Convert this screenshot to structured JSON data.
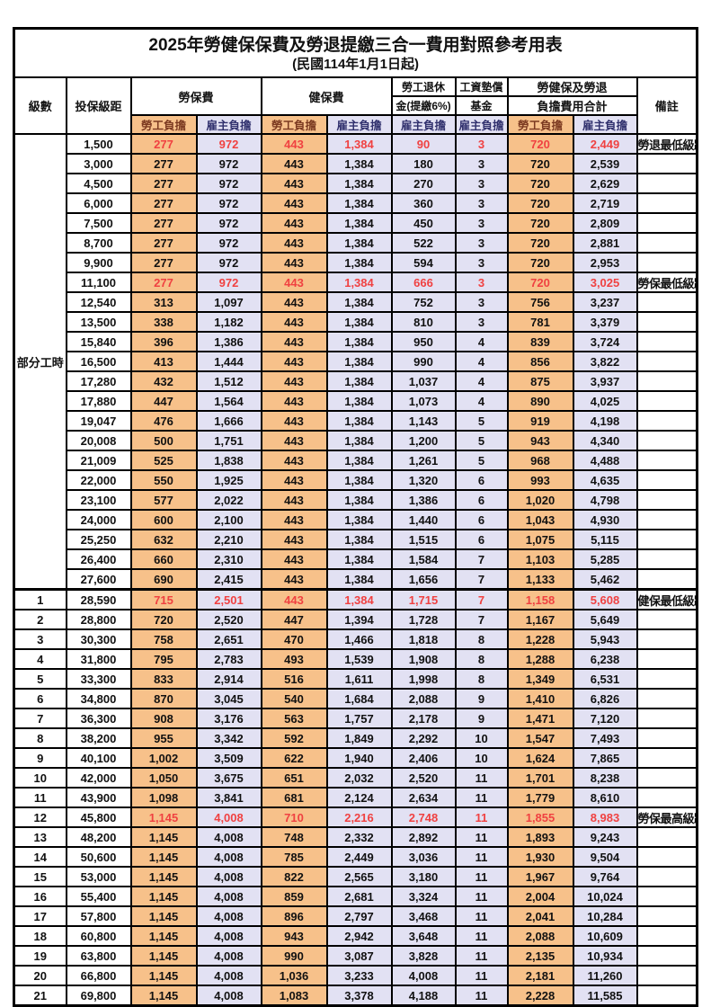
{
  "page": {
    "title": "2025年勞健保保費及勞退提繳三合一費用對照參考用表",
    "subtitle": "(民國114年1月1日起)"
  },
  "colors": {
    "employee_col_bg": "#F7C18A",
    "employer_col_bg": "#E2E1F3",
    "highlight_text": "#F04141",
    "note_text": "#FF4D4D",
    "border": "#000000"
  },
  "table": {
    "headers": {
      "level": "級數",
      "bracket": "投保級距",
      "labor_ins": "勞保費",
      "health_ins": "健保費",
      "pension_line1": "勞工退休",
      "pension_line2": "金(提繳6%)",
      "wage_fund_line1": "工資墊償",
      "wage_fund_line2": "基金",
      "total_line1": "勞健保及勞退",
      "total_line2": "負擔費用合計",
      "note": "備註",
      "employee": "勞工負擔",
      "employer": "雇主負擔"
    },
    "part_time_label": "部分工時",
    "part_time_span": 23,
    "row_columns": [
      "level",
      "bracket",
      "labor_emp",
      "labor_er",
      "health_emp",
      "health_er",
      "pension_er",
      "fund_er",
      "total_emp",
      "total_er",
      "note",
      "highlight"
    ],
    "rows": [
      [
        "",
        "1,500",
        "277",
        "972",
        "443",
        "1,384",
        "90",
        "3",
        "720",
        "2,449",
        "勞退最低級距",
        1
      ],
      [
        "",
        "3,000",
        "277",
        "972",
        "443",
        "1,384",
        "180",
        "3",
        "720",
        "2,539",
        "",
        0
      ],
      [
        "",
        "4,500",
        "277",
        "972",
        "443",
        "1,384",
        "270",
        "3",
        "720",
        "2,629",
        "",
        0
      ],
      [
        "",
        "6,000",
        "277",
        "972",
        "443",
        "1,384",
        "360",
        "3",
        "720",
        "2,719",
        "",
        0
      ],
      [
        "",
        "7,500",
        "277",
        "972",
        "443",
        "1,384",
        "450",
        "3",
        "720",
        "2,809",
        "",
        0
      ],
      [
        "",
        "8,700",
        "277",
        "972",
        "443",
        "1,384",
        "522",
        "3",
        "720",
        "2,881",
        "",
        0
      ],
      [
        "",
        "9,900",
        "277",
        "972",
        "443",
        "1,384",
        "594",
        "3",
        "720",
        "2,953",
        "",
        0
      ],
      [
        "",
        "11,100",
        "277",
        "972",
        "443",
        "1,384",
        "666",
        "3",
        "720",
        "3,025",
        "勞保最低級距",
        1
      ],
      [
        "",
        "12,540",
        "313",
        "1,097",
        "443",
        "1,384",
        "752",
        "3",
        "756",
        "3,237",
        "",
        0
      ],
      [
        "",
        "13,500",
        "338",
        "1,182",
        "443",
        "1,384",
        "810",
        "3",
        "781",
        "3,379",
        "",
        0
      ],
      [
        "",
        "15,840",
        "396",
        "1,386",
        "443",
        "1,384",
        "950",
        "4",
        "839",
        "3,724",
        "",
        0
      ],
      [
        "",
        "16,500",
        "413",
        "1,444",
        "443",
        "1,384",
        "990",
        "4",
        "856",
        "3,822",
        "",
        0
      ],
      [
        "",
        "17,280",
        "432",
        "1,512",
        "443",
        "1,384",
        "1,037",
        "4",
        "875",
        "3,937",
        "",
        0
      ],
      [
        "",
        "17,880",
        "447",
        "1,564",
        "443",
        "1,384",
        "1,073",
        "4",
        "890",
        "4,025",
        "",
        0
      ],
      [
        "",
        "19,047",
        "476",
        "1,666",
        "443",
        "1,384",
        "1,143",
        "5",
        "919",
        "4,198",
        "",
        0
      ],
      [
        "",
        "20,008",
        "500",
        "1,751",
        "443",
        "1,384",
        "1,200",
        "5",
        "943",
        "4,340",
        "",
        0
      ],
      [
        "",
        "21,009",
        "525",
        "1,838",
        "443",
        "1,384",
        "1,261",
        "5",
        "968",
        "4,488",
        "",
        0
      ],
      [
        "",
        "22,000",
        "550",
        "1,925",
        "443",
        "1,384",
        "1,320",
        "6",
        "993",
        "4,635",
        "",
        0
      ],
      [
        "",
        "23,100",
        "577",
        "2,022",
        "443",
        "1,384",
        "1,386",
        "6",
        "1,020",
        "4,798",
        "",
        0
      ],
      [
        "",
        "24,000",
        "600",
        "2,100",
        "443",
        "1,384",
        "1,440",
        "6",
        "1,043",
        "4,930",
        "",
        0
      ],
      [
        "",
        "25,250",
        "632",
        "2,210",
        "443",
        "1,384",
        "1,515",
        "6",
        "1,075",
        "5,115",
        "",
        0
      ],
      [
        "",
        "26,400",
        "660",
        "2,310",
        "443",
        "1,384",
        "1,584",
        "7",
        "1,103",
        "5,285",
        "",
        0
      ],
      [
        "",
        "27,600",
        "690",
        "2,415",
        "443",
        "1,384",
        "1,656",
        "7",
        "1,133",
        "5,462",
        "",
        0
      ],
      [
        "1",
        "28,590",
        "715",
        "2,501",
        "443",
        "1,384",
        "1,715",
        "7",
        "1,158",
        "5,608",
        "健保最低級距",
        1
      ],
      [
        "2",
        "28,800",
        "720",
        "2,520",
        "447",
        "1,394",
        "1,728",
        "7",
        "1,167",
        "5,649",
        "",
        0
      ],
      [
        "3",
        "30,300",
        "758",
        "2,651",
        "470",
        "1,466",
        "1,818",
        "8",
        "1,228",
        "5,943",
        "",
        0
      ],
      [
        "4",
        "31,800",
        "795",
        "2,783",
        "493",
        "1,539",
        "1,908",
        "8",
        "1,288",
        "6,238",
        "",
        0
      ],
      [
        "5",
        "33,300",
        "833",
        "2,914",
        "516",
        "1,611",
        "1,998",
        "8",
        "1,349",
        "6,531",
        "",
        0
      ],
      [
        "6",
        "34,800",
        "870",
        "3,045",
        "540",
        "1,684",
        "2,088",
        "9",
        "1,410",
        "6,826",
        "",
        0
      ],
      [
        "7",
        "36,300",
        "908",
        "3,176",
        "563",
        "1,757",
        "2,178",
        "9",
        "1,471",
        "7,120",
        "",
        0
      ],
      [
        "8",
        "38,200",
        "955",
        "3,342",
        "592",
        "1,849",
        "2,292",
        "10",
        "1,547",
        "7,493",
        "",
        0
      ],
      [
        "9",
        "40,100",
        "1,002",
        "3,509",
        "622",
        "1,940",
        "2,406",
        "10",
        "1,624",
        "7,865",
        "",
        0
      ],
      [
        "10",
        "42,000",
        "1,050",
        "3,675",
        "651",
        "2,032",
        "2,520",
        "11",
        "1,701",
        "8,238",
        "",
        0
      ],
      [
        "11",
        "43,900",
        "1,098",
        "3,841",
        "681",
        "2,124",
        "2,634",
        "11",
        "1,779",
        "8,610",
        "",
        0
      ],
      [
        "12",
        "45,800",
        "1,145",
        "4,008",
        "710",
        "2,216",
        "2,748",
        "11",
        "1,855",
        "8,983",
        "勞保最高級距",
        1
      ],
      [
        "13",
        "48,200",
        "1,145",
        "4,008",
        "748",
        "2,332",
        "2,892",
        "11",
        "1,893",
        "9,243",
        "",
        0
      ],
      [
        "14",
        "50,600",
        "1,145",
        "4,008",
        "785",
        "2,449",
        "3,036",
        "11",
        "1,930",
        "9,504",
        "",
        0
      ],
      [
        "15",
        "53,000",
        "1,145",
        "4,008",
        "822",
        "2,565",
        "3,180",
        "11",
        "1,967",
        "9,764",
        "",
        0
      ],
      [
        "16",
        "55,400",
        "1,145",
        "4,008",
        "859",
        "2,681",
        "3,324",
        "11",
        "2,004",
        "10,024",
        "",
        0
      ],
      [
        "17",
        "57,800",
        "1,145",
        "4,008",
        "896",
        "2,797",
        "3,468",
        "11",
        "2,041",
        "10,284",
        "",
        0
      ],
      [
        "18",
        "60,800",
        "1,145",
        "4,008",
        "943",
        "2,942",
        "3,648",
        "11",
        "2,088",
        "10,609",
        "",
        0
      ],
      [
        "19",
        "63,800",
        "1,145",
        "4,008",
        "990",
        "3,087",
        "3,828",
        "11",
        "2,135",
        "10,934",
        "",
        0
      ],
      [
        "20",
        "66,800",
        "1,145",
        "4,008",
        "1,036",
        "3,233",
        "4,008",
        "11",
        "2,181",
        "11,260",
        "",
        0
      ],
      [
        "21",
        "69,800",
        "1,145",
        "4,008",
        "1,083",
        "3,378",
        "4,188",
        "11",
        "2,228",
        "11,585",
        "",
        0
      ]
    ]
  }
}
